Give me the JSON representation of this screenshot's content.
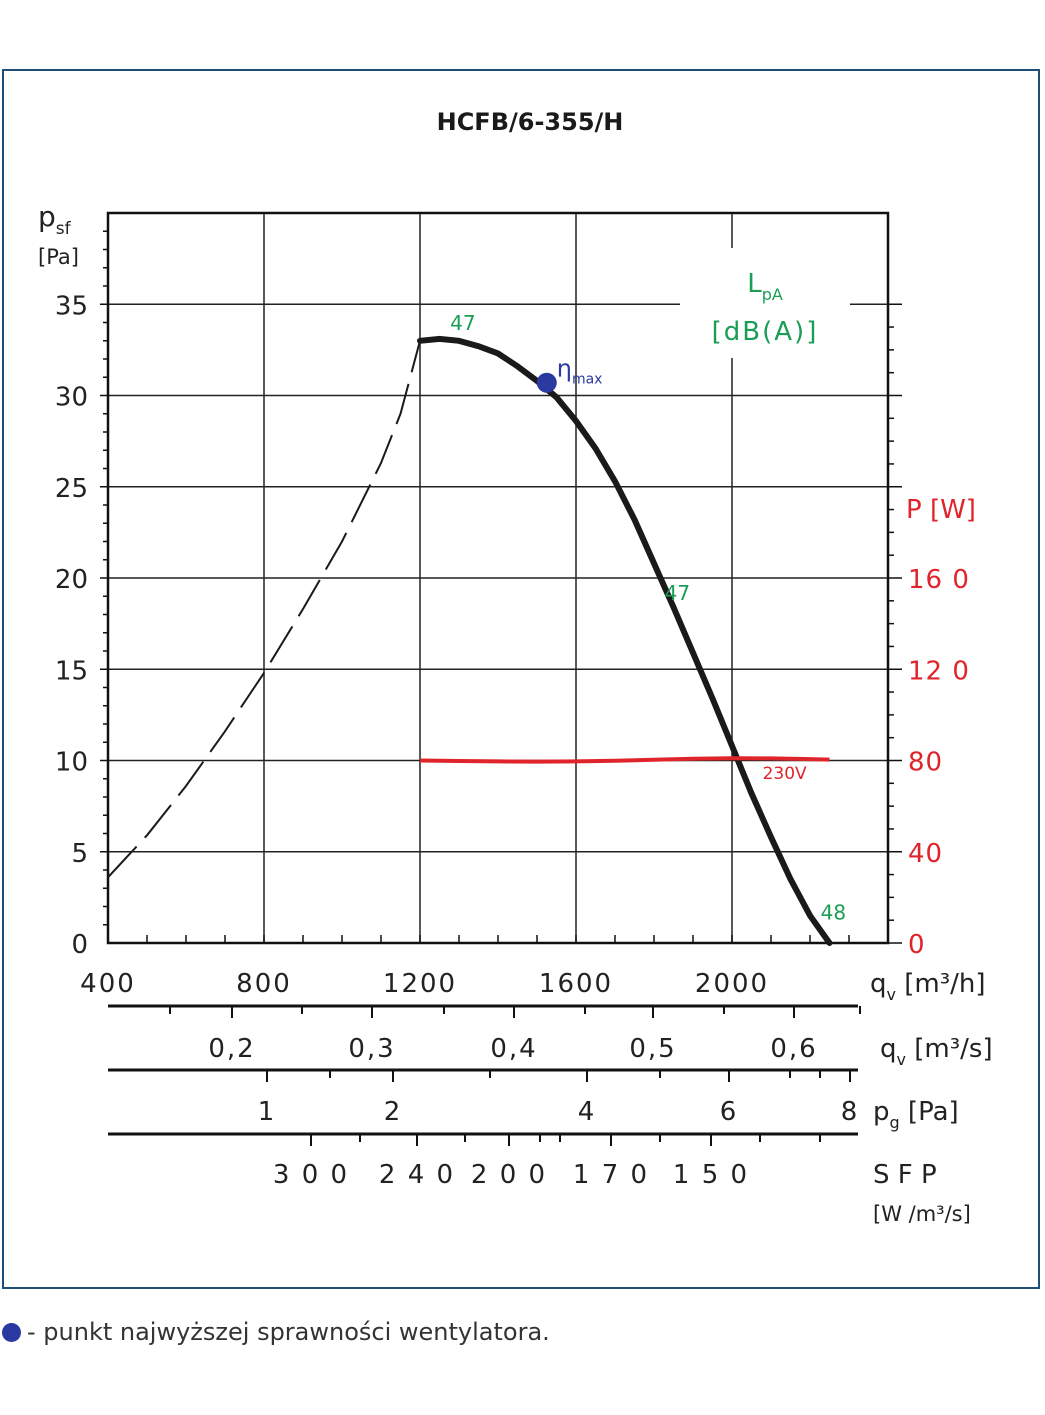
{
  "chart_data": {
    "type": "line",
    "title": "HCFB/6-355/H",
    "xlabel_main": "q",
    "xlabel_main_sub": "v",
    "xlabel_main_unit": "[m³/h]",
    "ylabel_main": "p",
    "ylabel_main_sub": "sf",
    "ylabel_main_unit": "[Pa]",
    "ylabel_right": "P",
    "ylabel_right_unit": "[W]",
    "xlim": [
      400,
      2400
    ],
    "ylim": [
      0,
      40
    ],
    "x_ticks": [
      {
        "value": 400,
        "label": "400"
      },
      {
        "value": 800,
        "label": "800"
      },
      {
        "value": 1200,
        "label": "1200"
      },
      {
        "value": 1600,
        "label": "1600"
      },
      {
        "value": 2000,
        "label": "2000"
      }
    ],
    "y_ticks": [
      {
        "value": 0,
        "label": "0"
      },
      {
        "value": 5,
        "label": "5"
      },
      {
        "value": 10,
        "label": "10"
      },
      {
        "value": 15,
        "label": "15"
      },
      {
        "value": 20,
        "label": "20"
      },
      {
        "value": 25,
        "label": "25"
      },
      {
        "value": 30,
        "label": "30"
      },
      {
        "value": 35,
        "label": "35"
      }
    ],
    "right_ticks": [
      {
        "value": 0,
        "label": "0"
      },
      {
        "value": 40,
        "label": "40"
      },
      {
        "value": 80,
        "label": "80"
      },
      {
        "value": 120,
        "label": "12 0"
      },
      {
        "value": 160,
        "label": "16 0"
      }
    ],
    "right_scale": 8,
    "series": [
      {
        "kind": "pressure-solid",
        "color": "#1a1a1a",
        "x": [
          1200,
          1250,
          1300,
          1350,
          1400,
          1450,
          1500,
          1550,
          1600,
          1650,
          1700,
          1750,
          1800,
          1850,
          1900,
          1950,
          2000,
          2050,
          2100,
          2150,
          2200,
          2250
        ],
        "y": [
          33.0,
          33.1,
          33.0,
          32.7,
          32.3,
          31.6,
          30.8,
          29.9,
          28.6,
          27.1,
          25.3,
          23.2,
          20.8,
          18.4,
          15.9,
          13.4,
          10.8,
          8.2,
          5.8,
          3.5,
          1.5,
          0.0
        ]
      },
      {
        "kind": "pressure-dashed",
        "color": "#1a1a1a",
        "x": [
          400,
          500,
          600,
          700,
          800,
          900,
          1000,
          1100,
          1150,
          1200
        ],
        "y": [
          3.6,
          5.9,
          8.6,
          11.6,
          14.8,
          18.3,
          22.0,
          26.3,
          29.0,
          33.0
        ]
      },
      {
        "kind": "power",
        "color": "#e0242b",
        "x": [
          1200,
          1300,
          1400,
          1500,
          1600,
          1700,
          1800,
          1900,
          2000,
          2100,
          2200,
          2250
        ],
        "y": [
          80.0,
          79.8,
          79.6,
          79.5,
          79.6,
          79.9,
          80.3,
          80.8,
          81.0,
          80.9,
          80.6,
          80.4
        ]
      }
    ],
    "eta_max": {
      "x": 1525,
      "y": 30.7,
      "label": "η",
      "label_sub": "max"
    },
    "sound_labels": [
      {
        "x": 1310,
        "y": 33.6,
        "text": "47"
      },
      {
        "x": 1860,
        "y": 18.8,
        "text": "47"
      },
      {
        "x": 2260,
        "y": 1.3,
        "text": "48"
      }
    ],
    "voltage_label": {
      "x": 2135,
      "y": 9.0,
      "text": "230V"
    },
    "lpa_label": {
      "line1": "L",
      "line1_sub": "pA",
      "line2": "[dB(A)]"
    },
    "secondary_axes": [
      {
        "name": "qv-m3s",
        "label": "q",
        "label_sub": "v",
        "unit": "[m³/s]",
        "ticks": [
          {
            "value": 0.2,
            "label": "0,2"
          },
          {
            "value": 0.3,
            "label": "0,3"
          },
          {
            "value": 0.4,
            "label": "0,4"
          },
          {
            "value": 0.5,
            "label": "0,5"
          },
          {
            "value": 0.6,
            "label": "0,6"
          }
        ]
      },
      {
        "name": "pg",
        "label": "p",
        "label_sub": "g",
        "unit": "[Pa]",
        "ticks": [
          {
            "value": 1,
            "label": "1"
          },
          {
            "value": 2,
            "label": "2"
          },
          {
            "value": 4,
            "label": "4"
          },
          {
            "value": 6,
            "label": "6"
          },
          {
            "value": 8,
            "label": "8"
          }
        ]
      },
      {
        "name": "sfp",
        "label": "S F P",
        "unit": "[W /m³/s]",
        "ticks": [
          {
            "value": 300,
            "label": "3 0 0"
          },
          {
            "value": 240,
            "label": "2 4 0"
          },
          {
            "value": 200,
            "label": "2 0 0"
          },
          {
            "value": 170,
            "label": "1 7 0"
          },
          {
            "value": 150,
            "label": "1 5 0"
          }
        ]
      }
    ]
  },
  "footnote": "- punkt najwyższej sprawności wentylatora."
}
